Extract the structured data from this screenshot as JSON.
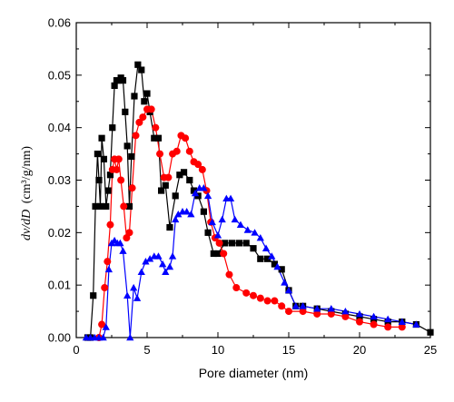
{
  "chart_data": {
    "type": "scatter",
    "title": "",
    "xlabel": "Pore diameter (nm)",
    "ylabel_prefix": "dv/dD",
    "ylabel_unit": "(cm³/g/nm)",
    "xlim": [
      0,
      25
    ],
    "ylim": [
      0,
      0.06
    ],
    "xticks": [
      "0",
      "5",
      "10",
      "15",
      "20",
      "25"
    ],
    "yticks": [
      "0.00",
      "0.01",
      "0.02",
      "0.03",
      "0.04",
      "0.05",
      "0.06"
    ],
    "grid": false,
    "legend": "none",
    "series": [
      {
        "color": "#000000",
        "marker": "square",
        "points": [
          [
            0.8,
            0
          ],
          [
            1.0,
            0
          ],
          [
            1.2,
            0.008
          ],
          [
            1.35,
            0.025
          ],
          [
            1.5,
            0.035
          ],
          [
            1.6,
            0.03
          ],
          [
            1.7,
            0.025
          ],
          [
            1.8,
            0.038
          ],
          [
            1.95,
            0.034
          ],
          [
            2.1,
            0.025
          ],
          [
            2.25,
            0.028
          ],
          [
            2.4,
            0.031
          ],
          [
            2.55,
            0.04
          ],
          [
            2.7,
            0.048
          ],
          [
            2.85,
            0.049
          ],
          [
            3.0,
            0.049
          ],
          [
            3.15,
            0.0495
          ],
          [
            3.3,
            0.049
          ],
          [
            3.45,
            0.043
          ],
          [
            3.6,
            0.0365
          ],
          [
            3.75,
            0.025
          ],
          [
            3.9,
            0.0345
          ],
          [
            4.1,
            0.046
          ],
          [
            4.35,
            0.052
          ],
          [
            4.6,
            0.051
          ],
          [
            4.8,
            0.045
          ],
          [
            5.0,
            0.0465
          ],
          [
            5.2,
            0.043
          ],
          [
            5.5,
            0.038
          ],
          [
            5.8,
            0.038
          ],
          [
            6.0,
            0.028
          ],
          [
            6.3,
            0.029
          ],
          [
            6.6,
            0.021
          ],
          [
            7.0,
            0.027
          ],
          [
            7.3,
            0.031
          ],
          [
            7.6,
            0.0315
          ],
          [
            8.0,
            0.03
          ],
          [
            8.3,
            0.028
          ],
          [
            8.6,
            0.027
          ],
          [
            9.0,
            0.024
          ],
          [
            9.3,
            0.02
          ],
          [
            9.7,
            0.016
          ],
          [
            10.0,
            0.016
          ],
          [
            10.5,
            0.018
          ],
          [
            11.0,
            0.018
          ],
          [
            11.5,
            0.018
          ],
          [
            12.0,
            0.018
          ],
          [
            12.5,
            0.017
          ],
          [
            13.0,
            0.015
          ],
          [
            13.5,
            0.015
          ],
          [
            14.0,
            0.014
          ],
          [
            14.5,
            0.013
          ],
          [
            15.0,
            0.009
          ],
          [
            15.5,
            0.006
          ],
          [
            16.0,
            0.006
          ],
          [
            17.0,
            0.0055
          ],
          [
            18.0,
            0.005
          ],
          [
            19.0,
            0.0045
          ],
          [
            20.0,
            0.004
          ],
          [
            21.0,
            0.0035
          ],
          [
            22.0,
            0.003
          ],
          [
            23.0,
            0.003
          ],
          [
            24.0,
            0.0025
          ],
          [
            25.0,
            0.001
          ]
        ]
      },
      {
        "color": "#ff0000",
        "marker": "circle",
        "points": [
          [
            1.6,
            0
          ],
          [
            1.8,
            0.0025
          ],
          [
            2.0,
            0.0095
          ],
          [
            2.2,
            0.0145
          ],
          [
            2.4,
            0.0215
          ],
          [
            2.55,
            0.032
          ],
          [
            2.7,
            0.034
          ],
          [
            2.85,
            0.032
          ],
          [
            3.0,
            0.034
          ],
          [
            3.15,
            0.03
          ],
          [
            3.35,
            0.025
          ],
          [
            3.55,
            0.019
          ],
          [
            3.75,
            0.02
          ],
          [
            3.95,
            0.0285
          ],
          [
            4.2,
            0.0385
          ],
          [
            4.45,
            0.041
          ],
          [
            4.7,
            0.042
          ],
          [
            5.0,
            0.0435
          ],
          [
            5.3,
            0.0435
          ],
          [
            5.6,
            0.04
          ],
          [
            5.9,
            0.035
          ],
          [
            6.2,
            0.0305
          ],
          [
            6.5,
            0.0305
          ],
          [
            6.8,
            0.035
          ],
          [
            7.1,
            0.0355
          ],
          [
            7.4,
            0.0385
          ],
          [
            7.7,
            0.038
          ],
          [
            8.0,
            0.0355
          ],
          [
            8.3,
            0.0335
          ],
          [
            8.6,
            0.033
          ],
          [
            8.9,
            0.032
          ],
          [
            9.2,
            0.028
          ],
          [
            9.5,
            0.022
          ],
          [
            9.8,
            0.019
          ],
          [
            10.1,
            0.018
          ],
          [
            10.4,
            0.016
          ],
          [
            10.8,
            0.012
          ],
          [
            11.3,
            0.0095
          ],
          [
            12.0,
            0.0085
          ],
          [
            12.5,
            0.008
          ],
          [
            13.0,
            0.0075
          ],
          [
            13.5,
            0.007
          ],
          [
            14.0,
            0.007
          ],
          [
            14.5,
            0.006
          ],
          [
            15.0,
            0.005
          ],
          [
            16.0,
            0.005
          ],
          [
            17.0,
            0.0045
          ],
          [
            18.0,
            0.0045
          ],
          [
            19.0,
            0.004
          ],
          [
            20.0,
            0.003
          ],
          [
            21.0,
            0.0025
          ],
          [
            22.0,
            0.002
          ],
          [
            23.0,
            0.002
          ]
        ]
      },
      {
        "color": "#0000ff",
        "marker": "triangle",
        "points": [
          [
            0.7,
            0
          ],
          [
            1.0,
            0
          ],
          [
            1.3,
            0
          ],
          [
            1.6,
            0
          ],
          [
            1.9,
            0
          ],
          [
            2.1,
            0.002
          ],
          [
            2.3,
            0.013
          ],
          [
            2.5,
            0.018
          ],
          [
            2.7,
            0.0185
          ],
          [
            2.9,
            0.018
          ],
          [
            3.1,
            0.018
          ],
          [
            3.3,
            0.0165
          ],
          [
            3.6,
            0.008
          ],
          [
            3.8,
            0
          ],
          [
            4.05,
            0.0095
          ],
          [
            4.3,
            0.0075
          ],
          [
            4.6,
            0.0125
          ],
          [
            4.9,
            0.0145
          ],
          [
            5.2,
            0.015
          ],
          [
            5.5,
            0.0155
          ],
          [
            5.8,
            0.0155
          ],
          [
            6.1,
            0.014
          ],
          [
            6.3,
            0.0125
          ],
          [
            6.6,
            0.0135
          ],
          [
            6.8,
            0.0155
          ],
          [
            7.0,
            0.0225
          ],
          [
            7.2,
            0.0235
          ],
          [
            7.5,
            0.024
          ],
          [
            7.8,
            0.024
          ],
          [
            8.1,
            0.0235
          ],
          [
            8.4,
            0.0275
          ],
          [
            8.7,
            0.0285
          ],
          [
            9.0,
            0.0285
          ],
          [
            9.3,
            0.027
          ],
          [
            9.6,
            0.022
          ],
          [
            10.0,
            0.0195
          ],
          [
            10.3,
            0.0225
          ],
          [
            10.6,
            0.0265
          ],
          [
            10.9,
            0.0265
          ],
          [
            11.2,
            0.0225
          ],
          [
            11.6,
            0.0215
          ],
          [
            12.1,
            0.0205
          ],
          [
            12.6,
            0.02
          ],
          [
            13.0,
            0.019
          ],
          [
            13.4,
            0.017
          ],
          [
            13.8,
            0.0155
          ],
          [
            14.2,
            0.0135
          ],
          [
            14.7,
            0.0105
          ],
          [
            15.0,
            0.009
          ],
          [
            15.5,
            0.006
          ],
          [
            16.0,
            0.006
          ],
          [
            17.0,
            0.0055
          ],
          [
            18.0,
            0.0055
          ],
          [
            19.0,
            0.005
          ],
          [
            20.0,
            0.0045
          ],
          [
            21.0,
            0.004
          ],
          [
            22.0,
            0.0035
          ],
          [
            23.0,
            0.003
          ],
          [
            24.0,
            0.0025
          ]
        ]
      }
    ]
  }
}
